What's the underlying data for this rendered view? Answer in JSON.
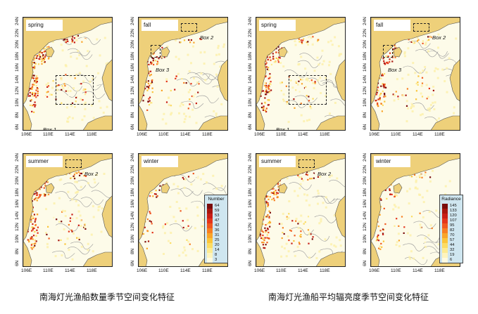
{
  "latitude_labels": [
    "24N",
    "22N",
    "20N",
    "18N",
    "16N",
    "14N",
    "12N",
    "10N",
    "8N",
    "6N"
  ],
  "longitude_labels": [
    "106E",
    "110E",
    "114E",
    "118E"
  ],
  "panels": [
    {
      "season": "spring",
      "boxes": [
        "Box 1"
      ]
    },
    {
      "season": "fall",
      "boxes": [
        "Box 2",
        "Box 3"
      ]
    },
    {
      "season": "summer",
      "boxes": [
        "Box 2"
      ]
    },
    {
      "season": "winter",
      "boxes": []
    },
    {
      "season": "spring",
      "boxes": [
        "Box 1"
      ]
    },
    {
      "season": "fall",
      "boxes": [
        "Box 2",
        "Box 3"
      ]
    },
    {
      "season": "summer",
      "boxes": [
        "Box 2"
      ]
    },
    {
      "season": "winter",
      "boxes": []
    }
  ],
  "legend_number": {
    "title": "Number",
    "values": [
      "64",
      "59",
      "53",
      "47",
      "42",
      "36",
      "31",
      "25",
      "20",
      "14",
      "8",
      "3"
    ]
  },
  "legend_radiance": {
    "title": "Radiance",
    "values": [
      "145",
      "133",
      "120",
      "107",
      "95",
      "82",
      "70",
      "57",
      "44",
      "32",
      "19",
      "6"
    ]
  },
  "legend_colors": [
    "#7a0c0c",
    "#a8160f",
    "#c81e16",
    "#e4351b",
    "#f0581f",
    "#f77f22",
    "#f9a52a",
    "#fbc53a",
    "#fcdc63",
    "#fdeb92",
    "#fef4bd",
    "#fffbe0"
  ],
  "captions": {
    "left": "南海灯光渔船数量季节空间变化特征",
    "right": "南海灯光渔船平均辐亮度季节空间变化特征"
  },
  "colors": {
    "land": "#eed07a",
    "sea": "#fdfbe9",
    "coast": "#9a9a9a"
  }
}
